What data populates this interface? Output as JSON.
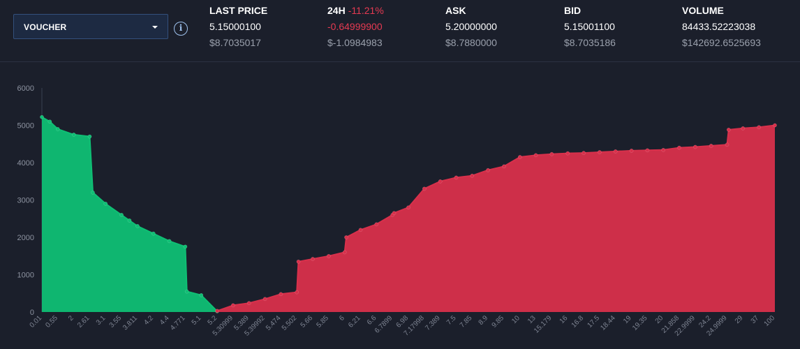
{
  "selector": {
    "label": "VOUCHER"
  },
  "stats": {
    "last_price": {
      "label": "LAST PRICE",
      "value": "5.15000100",
      "usd": "$8.7035017"
    },
    "h24": {
      "label": "24H",
      "change": "-11.21%",
      "value": "-0.64999900",
      "usd": "$-1.0984983"
    },
    "ask": {
      "label": "ASK",
      "value": "5.20000000",
      "usd": "$8.7880000"
    },
    "bid": {
      "label": "BID",
      "value": "5.15001100",
      "usd": "$8.7035186"
    },
    "volume": {
      "label": "VOLUME",
      "value": "84433.52223038",
      "usd": "$142692.6525693"
    }
  },
  "colors": {
    "bid": "#0fbf74",
    "ask": "#d8304b",
    "background": "#1b1f2b",
    "negative": "#e63a52"
  },
  "chart_data": {
    "type": "area",
    "y_ticks": [
      "0",
      "1000",
      "2000",
      "3000",
      "4000",
      "5000",
      "6000"
    ],
    "ylim": [
      0,
      6000
    ],
    "x_tick_labels": [
      "0.01",
      "0.55",
      "2",
      "2.61",
      "3.1",
      "3.55",
      "3.811",
      "4.2",
      "4.4",
      "4.771",
      "5.1",
      "5.2",
      "5.30999",
      "5.389",
      "5.39992",
      "5.474",
      "5.502",
      "5.66",
      "5.85",
      "6",
      "6.21",
      "6.6",
      "6.7899",
      "6.98",
      "7.17998",
      "7.389",
      "7.5",
      "7.85",
      "8.9",
      "9.85",
      "10",
      "13",
      "15.179",
      "16",
      "16.8",
      "17.5",
      "18.44",
      "19",
      "19.35",
      "20",
      "21.858",
      "22.9999",
      "24.2",
      "24.9999",
      "29",
      "37",
      "100"
    ],
    "series": [
      {
        "side": "bid",
        "x_index": [
          0,
          0.5,
          1,
          2,
          3,
          3.2,
          4,
          5,
          5.5,
          6,
          7,
          8,
          9,
          9.1,
          10,
          11
        ],
        "values": [
          5220,
          5100,
          4900,
          4750,
          4700,
          3200,
          2900,
          2600,
          2450,
          2300,
          2100,
          1900,
          1750,
          550,
          450,
          20
        ]
      },
      {
        "side": "ask",
        "x_index": [
          11,
          12,
          13,
          14,
          15,
          16,
          16.1,
          17,
          18,
          19,
          19.1,
          20,
          21,
          22,
          22.1,
          23,
          24,
          25,
          26,
          27,
          28,
          29,
          30,
          31,
          32,
          33,
          34,
          35,
          36,
          37,
          38,
          39,
          40,
          41,
          42,
          43,
          43.1,
          44,
          45,
          46
        ],
        "values": [
          30,
          180,
          240,
          350,
          480,
          530,
          1350,
          1420,
          1500,
          1600,
          2000,
          2200,
          2350,
          2600,
          2650,
          2800,
          3300,
          3500,
          3600,
          3650,
          3800,
          3900,
          4150,
          4200,
          4230,
          4250,
          4260,
          4280,
          4300,
          4320,
          4330,
          4340,
          4400,
          4420,
          4450,
          4480,
          4880,
          4920,
          4950,
          5000
        ]
      }
    ]
  }
}
